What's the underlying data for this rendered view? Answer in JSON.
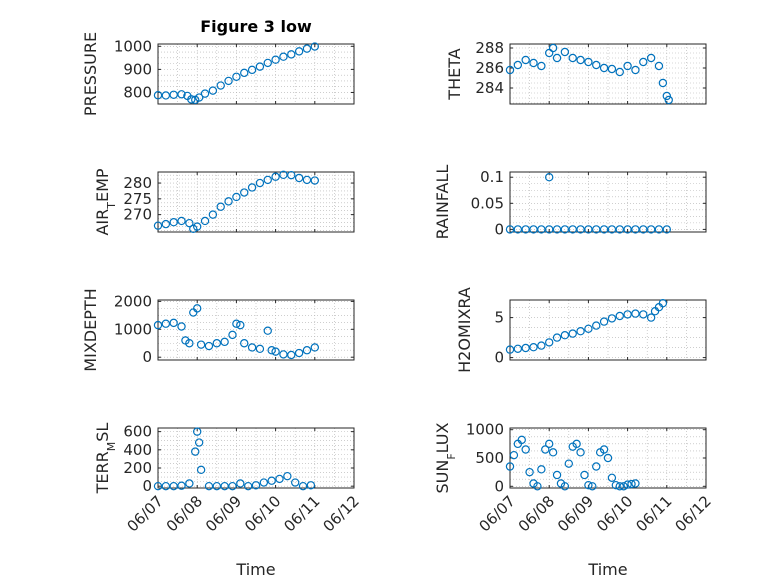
{
  "figure_title": "Figure 3 low",
  "colors": {
    "marker": "#0072BD",
    "axis": "#262626",
    "grid": "#b0b0b0"
  },
  "chart_data": [
    {
      "type": "scatter",
      "title": "Figure 3 low",
      "xlabel": "",
      "ylabel": "PRESSURE",
      "ylabel_parts": [
        {
          "t": "PRESSURE"
        }
      ],
      "xlim": [
        0,
        5
      ],
      "ylim": [
        750,
        1010
      ],
      "yticks": [
        800,
        900,
        1000
      ],
      "yticklabels": [
        "800",
        "900",
        "1000"
      ],
      "xticks_shown": false,
      "grid": true,
      "points": [
        [
          0.0,
          788
        ],
        [
          0.2,
          787
        ],
        [
          0.4,
          790
        ],
        [
          0.6,
          792
        ],
        [
          0.75,
          785
        ],
        [
          0.85,
          770
        ],
        [
          0.95,
          768
        ],
        [
          1.05,
          778
        ],
        [
          1.2,
          795
        ],
        [
          1.4,
          808
        ],
        [
          1.6,
          830
        ],
        [
          1.8,
          850
        ],
        [
          2.0,
          868
        ],
        [
          2.2,
          885
        ],
        [
          2.4,
          898
        ],
        [
          2.6,
          912
        ],
        [
          2.8,
          928
        ],
        [
          3.0,
          942
        ],
        [
          3.2,
          955
        ],
        [
          3.4,
          965
        ],
        [
          3.6,
          978
        ],
        [
          3.8,
          990
        ],
        [
          4.0,
          999
        ]
      ]
    },
    {
      "type": "scatter",
      "xlabel": "",
      "ylabel": "THETA",
      "ylabel_parts": [
        {
          "t": "THETA"
        }
      ],
      "xlim": [
        0,
        5
      ],
      "ylim": [
        282.4,
        288.4
      ],
      "yticks": [
        284,
        286,
        288
      ],
      "yticklabels": [
        "284",
        "286",
        "288"
      ],
      "xticks_shown": false,
      "grid": true,
      "points": [
        [
          0.0,
          285.8
        ],
        [
          0.2,
          286.3
        ],
        [
          0.4,
          286.8
        ],
        [
          0.6,
          286.5
        ],
        [
          0.8,
          286.2
        ],
        [
          1.0,
          287.5
        ],
        [
          1.1,
          288.0
        ],
        [
          1.2,
          287.0
        ],
        [
          1.4,
          287.6
        ],
        [
          1.6,
          287.0
        ],
        [
          1.8,
          286.8
        ],
        [
          2.0,
          286.6
        ],
        [
          2.2,
          286.3
        ],
        [
          2.4,
          286.0
        ],
        [
          2.6,
          285.9
        ],
        [
          2.8,
          285.6
        ],
        [
          3.0,
          286.2
        ],
        [
          3.2,
          285.8
        ],
        [
          3.4,
          286.6
        ],
        [
          3.6,
          287.0
        ],
        [
          3.8,
          286.2
        ],
        [
          3.9,
          284.5
        ],
        [
          4.0,
          283.2
        ],
        [
          4.05,
          282.8
        ]
      ]
    },
    {
      "type": "scatter",
      "xlabel": "",
      "ylabel": "AIR_TEMP",
      "ylabel_parts": [
        {
          "t": "AIR"
        },
        {
          "t": "T",
          "sub": true
        },
        {
          "t": "EMP"
        }
      ],
      "xlim": [
        0,
        5
      ],
      "ylim": [
        264.5,
        283.5
      ],
      "yticks": [
        270,
        275,
        280
      ],
      "yticklabels": [
        "270",
        "275",
        "280"
      ],
      "xticks_shown": false,
      "grid": true,
      "points": [
        [
          0.0,
          266.5
        ],
        [
          0.2,
          267.0
        ],
        [
          0.4,
          267.6
        ],
        [
          0.6,
          268.0
        ],
        [
          0.8,
          267.3
        ],
        [
          0.9,
          265.5
        ],
        [
          1.0,
          266.2
        ],
        [
          1.2,
          268.0
        ],
        [
          1.4,
          270.0
        ],
        [
          1.6,
          272.5
        ],
        [
          1.8,
          274.2
        ],
        [
          2.0,
          275.6
        ],
        [
          2.2,
          277.0
        ],
        [
          2.4,
          278.6
        ],
        [
          2.6,
          280.0
        ],
        [
          2.8,
          281.0
        ],
        [
          3.0,
          282.0
        ],
        [
          3.2,
          282.6
        ],
        [
          3.4,
          282.5
        ],
        [
          3.6,
          281.6
        ],
        [
          3.8,
          281.0
        ],
        [
          4.0,
          280.8
        ]
      ]
    },
    {
      "type": "scatter",
      "xlabel": "",
      "ylabel": "RAINFALL",
      "ylabel_parts": [
        {
          "t": "RAINFALL"
        }
      ],
      "xlim": [
        0,
        5
      ],
      "ylim": [
        -0.005,
        0.11
      ],
      "yticks": [
        0,
        0.05,
        0.1
      ],
      "yticklabels": [
        "0",
        "0.05",
        "0.1"
      ],
      "xticks_shown": false,
      "grid": true,
      "points": [
        [
          0.0,
          0
        ],
        [
          0.2,
          0
        ],
        [
          0.4,
          0
        ],
        [
          0.6,
          0
        ],
        [
          0.8,
          0
        ],
        [
          1.0,
          0.1
        ],
        [
          1.0,
          0
        ],
        [
          1.2,
          0
        ],
        [
          1.4,
          0
        ],
        [
          1.6,
          0
        ],
        [
          1.8,
          0
        ],
        [
          2.0,
          0
        ],
        [
          2.2,
          0
        ],
        [
          2.4,
          0
        ],
        [
          2.6,
          0
        ],
        [
          2.8,
          0
        ],
        [
          3.0,
          0
        ],
        [
          3.2,
          0
        ],
        [
          3.4,
          0
        ],
        [
          3.6,
          0
        ],
        [
          3.8,
          0
        ],
        [
          4.0,
          0
        ]
      ]
    },
    {
      "type": "scatter",
      "xlabel": "",
      "ylabel": "MIXDEPTH",
      "ylabel_parts": [
        {
          "t": "MIXDEPTH"
        }
      ],
      "xlim": [
        0,
        5
      ],
      "ylim": [
        -100,
        2050
      ],
      "yticks": [
        0,
        1000,
        2000
      ],
      "yticklabels": [
        "0",
        "1000",
        "2000"
      ],
      "xticks_shown": false,
      "grid": true,
      "points": [
        [
          0.0,
          1150
        ],
        [
          0.2,
          1200
        ],
        [
          0.4,
          1230
        ],
        [
          0.6,
          1100
        ],
        [
          0.7,
          600
        ],
        [
          0.8,
          500
        ],
        [
          0.9,
          1600
        ],
        [
          1.0,
          1750
        ],
        [
          1.1,
          450
        ],
        [
          1.3,
          400
        ],
        [
          1.5,
          500
        ],
        [
          1.7,
          550
        ],
        [
          1.9,
          800
        ],
        [
          2.0,
          1200
        ],
        [
          2.1,
          1150
        ],
        [
          2.2,
          500
        ],
        [
          2.4,
          350
        ],
        [
          2.6,
          300
        ],
        [
          2.8,
          950
        ],
        [
          2.9,
          250
        ],
        [
          3.0,
          200
        ],
        [
          3.2,
          100
        ],
        [
          3.4,
          80
        ],
        [
          3.6,
          150
        ],
        [
          3.8,
          250
        ],
        [
          4.0,
          350
        ]
      ]
    },
    {
      "type": "scatter",
      "xlabel": "",
      "ylabel": "H2OMIXRA",
      "ylabel_parts": [
        {
          "t": "H2OMIXRA"
        }
      ],
      "xlim": [
        0,
        5
      ],
      "ylim": [
        -0.3,
        7.2
      ],
      "yticks": [
        0,
        5
      ],
      "yticklabels": [
        "0",
        "5"
      ],
      "xticks_shown": false,
      "grid": true,
      "points": [
        [
          0.0,
          1.0
        ],
        [
          0.2,
          1.1
        ],
        [
          0.4,
          1.2
        ],
        [
          0.6,
          1.3
        ],
        [
          0.8,
          1.5
        ],
        [
          1.0,
          1.9
        ],
        [
          1.2,
          2.5
        ],
        [
          1.4,
          2.8
        ],
        [
          1.6,
          3.0
        ],
        [
          1.8,
          3.3
        ],
        [
          2.0,
          3.6
        ],
        [
          2.2,
          4.0
        ],
        [
          2.4,
          4.5
        ],
        [
          2.6,
          4.9
        ],
        [
          2.8,
          5.2
        ],
        [
          3.0,
          5.4
        ],
        [
          3.2,
          5.5
        ],
        [
          3.4,
          5.4
        ],
        [
          3.6,
          5.0
        ],
        [
          3.7,
          5.8
        ],
        [
          3.8,
          6.3
        ],
        [
          3.9,
          6.8
        ]
      ]
    },
    {
      "type": "scatter",
      "xlabel": "Time",
      "ylabel": "TERR_MSL",
      "ylabel_parts": [
        {
          "t": "TERR"
        },
        {
          "t": "M",
          "sub": true
        },
        {
          "t": "SL"
        }
      ],
      "xlim": [
        0,
        5
      ],
      "ylim": [
        -20,
        640
      ],
      "yticks": [
        0,
        200,
        400,
        600
      ],
      "yticklabels": [
        "0",
        "200",
        "400",
        "600"
      ],
      "xticks": [
        0,
        1,
        2,
        3,
        4,
        5
      ],
      "xticklabels": [
        "06/07",
        "06/08",
        "06/09",
        "06/10",
        "06/11",
        "06/12"
      ],
      "xticks_shown": true,
      "grid": true,
      "points": [
        [
          0.0,
          0
        ],
        [
          0.2,
          0
        ],
        [
          0.4,
          0
        ],
        [
          0.6,
          5
        ],
        [
          0.8,
          30
        ],
        [
          0.95,
          380
        ],
        [
          1.0,
          600
        ],
        [
          1.05,
          480
        ],
        [
          1.1,
          180
        ],
        [
          1.3,
          0
        ],
        [
          1.5,
          0
        ],
        [
          1.7,
          0
        ],
        [
          1.9,
          0
        ],
        [
          2.1,
          30
        ],
        [
          2.3,
          0
        ],
        [
          2.5,
          10
        ],
        [
          2.7,
          40
        ],
        [
          2.9,
          60
        ],
        [
          3.1,
          80
        ],
        [
          3.3,
          110
        ],
        [
          3.5,
          40
        ],
        [
          3.7,
          0
        ],
        [
          3.9,
          10
        ]
      ]
    },
    {
      "type": "scatter",
      "xlabel": "Time",
      "ylabel": "SUN_FLUX",
      "ylabel_parts": [
        {
          "t": "SUN"
        },
        {
          "t": "F",
          "sub": true
        },
        {
          "t": "LUX"
        }
      ],
      "xlim": [
        0,
        5
      ],
      "ylim": [
        -30,
        1030
      ],
      "yticks": [
        0,
        500,
        1000
      ],
      "yticklabels": [
        "0",
        "500",
        "1000"
      ],
      "xticks": [
        0,
        1,
        2,
        3,
        4,
        5
      ],
      "xticklabels": [
        "06/07",
        "06/08",
        "06/09",
        "06/10",
        "06/11",
        "06/12"
      ],
      "xticks_shown": true,
      "grid": true,
      "points": [
        [
          0.0,
          350
        ],
        [
          0.1,
          550
        ],
        [
          0.2,
          750
        ],
        [
          0.3,
          820
        ],
        [
          0.4,
          650
        ],
        [
          0.5,
          250
        ],
        [
          0.6,
          50
        ],
        [
          0.7,
          0
        ],
        [
          0.8,
          300
        ],
        [
          0.9,
          650
        ],
        [
          1.0,
          750
        ],
        [
          1.1,
          600
        ],
        [
          1.2,
          200
        ],
        [
          1.3,
          50
        ],
        [
          1.4,
          0
        ],
        [
          1.5,
          400
        ],
        [
          1.6,
          700
        ],
        [
          1.7,
          750
        ],
        [
          1.8,
          600
        ],
        [
          1.9,
          200
        ],
        [
          2.0,
          20
        ],
        [
          2.1,
          0
        ],
        [
          2.2,
          350
        ],
        [
          2.3,
          600
        ],
        [
          2.4,
          650
        ],
        [
          2.5,
          500
        ],
        [
          2.6,
          150
        ],
        [
          2.7,
          20
        ],
        [
          2.8,
          0
        ],
        [
          2.9,
          0
        ],
        [
          3.0,
          30
        ],
        [
          3.1,
          40
        ],
        [
          3.2,
          50
        ]
      ]
    }
  ]
}
